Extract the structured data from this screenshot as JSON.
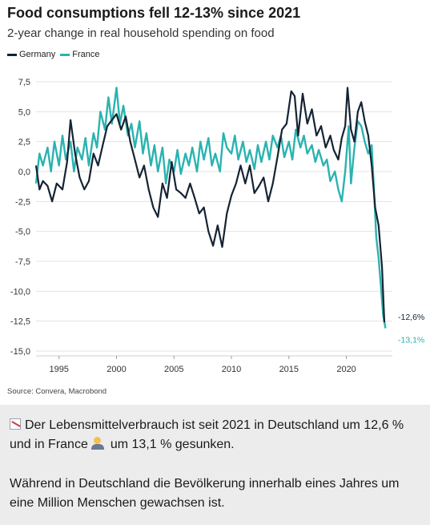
{
  "header": {
    "title": "Food consumptions fell 12-13% since 2021",
    "subtitle": "2-year change in real household spending on food",
    "source": "Source: Convera, Macrobond"
  },
  "legend": [
    {
      "name": "Germany",
      "color": "#152333"
    },
    {
      "name": "France",
      "color": "#2ab3b0"
    }
  ],
  "chart_data": {
    "type": "line",
    "ylim": [
      -15,
      7.5
    ],
    "xlim": [
      1993,
      2024
    ],
    "y_ticks": [
      "7,5",
      "5,0",
      "2,5",
      "0,0",
      "-2,5",
      "-5,0",
      "-7,5",
      "-10,0",
      "-12,5",
      "-15,0"
    ],
    "y_tick_values": [
      7.5,
      5,
      2.5,
      0,
      -2.5,
      -5,
      -7.5,
      -10,
      -12.5,
      -15
    ],
    "x_ticks": [
      "1995",
      "2000",
      "2005",
      "2010",
      "2015",
      "2020"
    ],
    "x_tick_values": [
      1995,
      2000,
      2005,
      2010,
      2015,
      2020
    ],
    "grid": "horizontal",
    "series": [
      {
        "name": "Germany",
        "color": "#152333",
        "end_label": "-12,6%",
        "points": [
          [
            1993.0,
            0.5
          ],
          [
            1993.3,
            -1.5
          ],
          [
            1993.6,
            -0.8
          ],
          [
            1994.0,
            -1.2
          ],
          [
            1994.4,
            -2.5
          ],
          [
            1994.8,
            -1.0
          ],
          [
            1995.3,
            -1.5
          ],
          [
            1995.7,
            0.8
          ],
          [
            1996.0,
            4.3
          ],
          [
            1996.4,
            1.5
          ],
          [
            1996.8,
            -0.5
          ],
          [
            1997.2,
            -1.5
          ],
          [
            1997.6,
            -0.8
          ],
          [
            1998.0,
            1.5
          ],
          [
            1998.4,
            0.5
          ],
          [
            1998.8,
            2.2
          ],
          [
            1999.2,
            3.8
          ],
          [
            1999.6,
            4.3
          ],
          [
            2000.0,
            4.8
          ],
          [
            2000.4,
            3.5
          ],
          [
            2000.8,
            4.6
          ],
          [
            2001.2,
            2.5
          ],
          [
            2001.6,
            1.0
          ],
          [
            2002.0,
            -0.5
          ],
          [
            2002.4,
            0.5
          ],
          [
            2002.8,
            -1.5
          ],
          [
            2003.2,
            -3.0
          ],
          [
            2003.6,
            -3.8
          ],
          [
            2004.0,
            -1.0
          ],
          [
            2004.4,
            -2.2
          ],
          [
            2004.8,
            0.8
          ],
          [
            2005.2,
            -1.5
          ],
          [
            2005.6,
            -1.8
          ],
          [
            2006.0,
            -2.2
          ],
          [
            2006.4,
            -1.0
          ],
          [
            2006.8,
            -2.2
          ],
          [
            2007.2,
            -3.5
          ],
          [
            2007.6,
            -3.0
          ],
          [
            2008.0,
            -5.0
          ],
          [
            2008.4,
            -6.2
          ],
          [
            2008.8,
            -4.5
          ],
          [
            2009.2,
            -6.3
          ],
          [
            2009.6,
            -3.5
          ],
          [
            2010.0,
            -2.0
          ],
          [
            2010.4,
            -1.0
          ],
          [
            2010.8,
            0.5
          ],
          [
            2011.2,
            -1.0
          ],
          [
            2011.6,
            0.5
          ],
          [
            2012.0,
            -1.8
          ],
          [
            2012.4,
            -1.2
          ],
          [
            2012.8,
            -0.5
          ],
          [
            2013.2,
            -2.5
          ],
          [
            2013.6,
            -1.0
          ],
          [
            2014.0,
            1.2
          ],
          [
            2014.4,
            3.5
          ],
          [
            2014.8,
            4.0
          ],
          [
            2015.2,
            6.7
          ],
          [
            2015.5,
            6.3
          ],
          [
            2015.8,
            3.0
          ],
          [
            2016.2,
            6.5
          ],
          [
            2016.6,
            4.0
          ],
          [
            2017.0,
            5.2
          ],
          [
            2017.4,
            3.0
          ],
          [
            2017.8,
            3.8
          ],
          [
            2018.2,
            2.0
          ],
          [
            2018.6,
            3.0
          ],
          [
            2018.9,
            1.8
          ],
          [
            2019.3,
            1.0
          ],
          [
            2019.6,
            2.8
          ],
          [
            2019.9,
            3.8
          ],
          [
            2020.1,
            7.0
          ],
          [
            2020.4,
            3.5
          ],
          [
            2020.7,
            2.5
          ],
          [
            2021.0,
            5.0
          ],
          [
            2021.3,
            5.8
          ],
          [
            2021.6,
            4.2
          ],
          [
            2021.9,
            3.0
          ],
          [
            2022.2,
            0.5
          ],
          [
            2022.5,
            -3.0
          ],
          [
            2022.8,
            -4.5
          ],
          [
            2023.1,
            -8.0
          ],
          [
            2023.3,
            -12.6
          ]
        ]
      },
      {
        "name": "France",
        "color": "#2ab3b0",
        "end_label": "-13,1%",
        "points": [
          [
            1993.0,
            -1.0
          ],
          [
            1993.3,
            1.5
          ],
          [
            1993.6,
            0.5
          ],
          [
            1994.0,
            2.0
          ],
          [
            1994.3,
            0.0
          ],
          [
            1994.6,
            2.5
          ],
          [
            1995.0,
            0.5
          ],
          [
            1995.3,
            3.0
          ],
          [
            1995.6,
            1.0
          ],
          [
            1996.0,
            2.5
          ],
          [
            1996.3,
            0.0
          ],
          [
            1996.6,
            2.0
          ],
          [
            1997.0,
            1.0
          ],
          [
            1997.3,
            2.8
          ],
          [
            1997.6,
            0.5
          ],
          [
            1998.0,
            3.2
          ],
          [
            1998.3,
            2.0
          ],
          [
            1998.6,
            5.0
          ],
          [
            1999.0,
            3.5
          ],
          [
            1999.3,
            6.2
          ],
          [
            1999.6,
            4.0
          ],
          [
            2000.0,
            7.0
          ],
          [
            2000.3,
            4.0
          ],
          [
            2000.6,
            5.5
          ],
          [
            2001.0,
            3.0
          ],
          [
            2001.3,
            4.0
          ],
          [
            2001.6,
            2.0
          ],
          [
            2002.0,
            4.2
          ],
          [
            2002.3,
            1.5
          ],
          [
            2002.6,
            3.2
          ],
          [
            2003.0,
            0.5
          ],
          [
            2003.3,
            2.2
          ],
          [
            2003.6,
            0.0
          ],
          [
            2004.0,
            2.0
          ],
          [
            2004.3,
            -1.0
          ],
          [
            2004.6,
            1.0
          ],
          [
            2005.0,
            0.0
          ],
          [
            2005.3,
            1.8
          ],
          [
            2005.6,
            -0.2
          ],
          [
            2006.0,
            1.5
          ],
          [
            2006.3,
            0.5
          ],
          [
            2006.6,
            2.0
          ],
          [
            2007.0,
            0.0
          ],
          [
            2007.3,
            2.5
          ],
          [
            2007.6,
            1.0
          ],
          [
            2008.0,
            2.8
          ],
          [
            2008.3,
            0.5
          ],
          [
            2008.6,
            1.5
          ],
          [
            2009.0,
            0.0
          ],
          [
            2009.3,
            3.2
          ],
          [
            2009.6,
            2.0
          ],
          [
            2010.0,
            1.5
          ],
          [
            2010.3,
            3.0
          ],
          [
            2010.6,
            1.0
          ],
          [
            2011.0,
            2.5
          ],
          [
            2011.3,
            0.8
          ],
          [
            2011.6,
            1.8
          ],
          [
            2012.0,
            0.2
          ],
          [
            2012.3,
            2.2
          ],
          [
            2012.6,
            0.8
          ],
          [
            2013.0,
            2.5
          ],
          [
            2013.3,
            1.0
          ],
          [
            2013.6,
            3.0
          ],
          [
            2014.0,
            2.0
          ],
          [
            2014.3,
            3.0
          ],
          [
            2014.6,
            1.2
          ],
          [
            2015.0,
            2.5
          ],
          [
            2015.3,
            1.0
          ],
          [
            2015.6,
            3.5
          ],
          [
            2016.0,
            2.0
          ],
          [
            2016.3,
            3.0
          ],
          [
            2016.6,
            1.5
          ],
          [
            2017.0,
            2.2
          ],
          [
            2017.3,
            0.8
          ],
          [
            2017.6,
            1.8
          ],
          [
            2018.0,
            0.5
          ],
          [
            2018.3,
            1.0
          ],
          [
            2018.6,
            -0.8
          ],
          [
            2019.0,
            0.0
          ],
          [
            2019.3,
            -1.5
          ],
          [
            2019.6,
            -2.5
          ],
          [
            2019.9,
            0.0
          ],
          [
            2020.2,
            3.8
          ],
          [
            2020.4,
            -1.0
          ],
          [
            2020.7,
            2.0
          ],
          [
            2021.0,
            4.2
          ],
          [
            2021.3,
            3.8
          ],
          [
            2021.6,
            2.5
          ],
          [
            2021.9,
            1.5
          ],
          [
            2022.2,
            2.2
          ],
          [
            2022.4,
            -1.5
          ],
          [
            2022.6,
            -5.5
          ],
          [
            2022.8,
            -7.2
          ],
          [
            2023.0,
            -9.5
          ],
          [
            2023.2,
            -12.0
          ],
          [
            2023.4,
            -13.1
          ]
        ]
      }
    ]
  },
  "caption": {
    "line1_part1": "Der Lebensmittelverbrauch ist seit 2021 in Deutschland um 12,6 % und in France",
    "line1_part2": "um 13,1 % gesunken.",
    "line2": "Während in Deutschland die Bevölkerung innerhalb eines Jahres um eine Million Menschen gewachsen ist.",
    "icons": [
      "chart-decreasing-icon",
      "people-icon"
    ]
  }
}
